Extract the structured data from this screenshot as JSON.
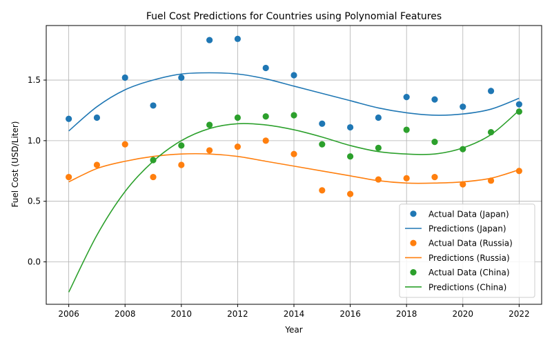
{
  "chart_data": {
    "type": "scatter",
    "title": "Fuel Cost Predictions for Countries using Polynomial Features",
    "xlabel": "Year",
    "ylabel": "Fuel Cost (USD/Liter)",
    "xlim": [
      2005.2,
      2022.8
    ],
    "ylim": [
      -0.35,
      1.95
    ],
    "xticks": [
      2006,
      2008,
      2010,
      2012,
      2014,
      2016,
      2018,
      2020,
      2022
    ],
    "yticks": [
      0.0,
      0.5,
      1.0,
      1.5
    ],
    "grid": true,
    "legend_position": "lower-right",
    "years": [
      2006,
      2007,
      2008,
      2009,
      2010,
      2011,
      2012,
      2013,
      2014,
      2015,
      2016,
      2017,
      2018,
      2019,
      2020,
      2021,
      2022
    ],
    "series": [
      {
        "country": "Japan",
        "actual_label": "Actual Data (Japan)",
        "prediction_label": "Predictions (Japan)",
        "color": "#1f77b4",
        "actual": [
          1.18,
          1.19,
          1.52,
          1.29,
          1.52,
          1.83,
          1.84,
          1.6,
          1.54,
          1.14,
          1.11,
          1.19,
          1.36,
          1.34,
          1.28,
          1.41,
          1.3
        ],
        "prediction": [
          [
            2006,
            1.08
          ],
          [
            2007,
            1.28
          ],
          [
            2008,
            1.42
          ],
          [
            2009,
            1.5
          ],
          [
            2010,
            1.55
          ],
          [
            2011,
            1.56
          ],
          [
            2012,
            1.55
          ],
          [
            2013,
            1.51
          ],
          [
            2014,
            1.45
          ],
          [
            2015,
            1.39
          ],
          [
            2016,
            1.33
          ],
          [
            2017,
            1.27
          ],
          [
            2018,
            1.23
          ],
          [
            2019,
            1.21
          ],
          [
            2020,
            1.22
          ],
          [
            2021,
            1.26
          ],
          [
            2022,
            1.35
          ]
        ]
      },
      {
        "country": "Russia",
        "actual_label": "Actual Data (Russia)",
        "prediction_label": "Predictions (Russia)",
        "color": "#ff7f0e",
        "actual": [
          0.7,
          0.8,
          0.97,
          0.7,
          0.8,
          0.92,
          0.95,
          1.0,
          0.89,
          0.59,
          0.56,
          0.68,
          0.69,
          0.7,
          0.64,
          0.67,
          0.75
        ],
        "prediction": [
          [
            2006,
            0.66
          ],
          [
            2007,
            0.77
          ],
          [
            2008,
            0.83
          ],
          [
            2009,
            0.87
          ],
          [
            2010,
            0.89
          ],
          [
            2011,
            0.89
          ],
          [
            2012,
            0.87
          ],
          [
            2013,
            0.83
          ],
          [
            2014,
            0.79
          ],
          [
            2015,
            0.75
          ],
          [
            2016,
            0.71
          ],
          [
            2017,
            0.67
          ],
          [
            2018,
            0.65
          ],
          [
            2019,
            0.65
          ],
          [
            2020,
            0.66
          ],
          [
            2021,
            0.69
          ],
          [
            2022,
            0.76
          ]
        ]
      },
      {
        "country": "China",
        "actual_label": "Actual Data (China)",
        "prediction_label": "Predictions (China)",
        "color": "#2ca02c",
        "actual": [
          null,
          null,
          null,
          0.84,
          0.96,
          1.13,
          1.19,
          1.2,
          1.21,
          0.97,
          0.87,
          0.94,
          1.09,
          0.99,
          0.93,
          1.07,
          1.24
        ],
        "prediction": [
          [
            2006,
            -0.25
          ],
          [
            2007,
            0.22
          ],
          [
            2008,
            0.58
          ],
          [
            2009,
            0.83
          ],
          [
            2010,
            1.0
          ],
          [
            2011,
            1.1
          ],
          [
            2012,
            1.14
          ],
          [
            2013,
            1.13
          ],
          [
            2014,
            1.09
          ],
          [
            2015,
            1.03
          ],
          [
            2016,
            0.96
          ],
          [
            2017,
            0.91
          ],
          [
            2018,
            0.89
          ],
          [
            2019,
            0.89
          ],
          [
            2020,
            0.94
          ],
          [
            2021,
            1.05
          ],
          [
            2022,
            1.25
          ]
        ]
      }
    ]
  }
}
